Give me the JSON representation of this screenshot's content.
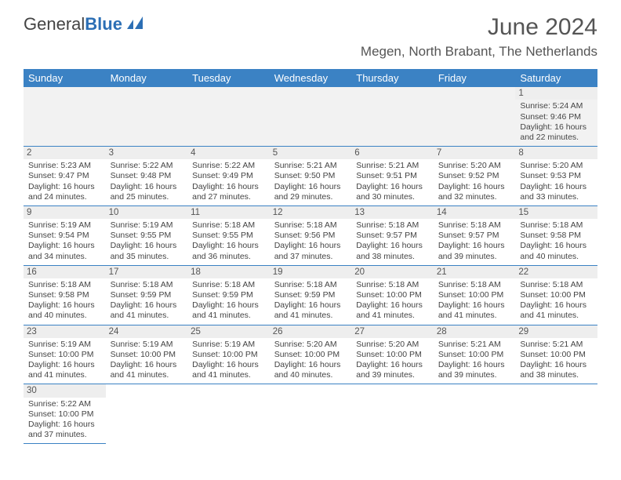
{
  "logo": {
    "part1": "General",
    "part2": "Blue"
  },
  "title": "June 2024",
  "location": "Megen, North Brabant, The Netherlands",
  "colors": {
    "header_bg": "#3b82c4",
    "header_text": "#ffffff",
    "cell_border": "#3b82c4",
    "daynum_bg": "#eeeeee",
    "text": "#444444",
    "logo_blue": "#2c6fb5"
  },
  "weekdays": [
    "Sunday",
    "Monday",
    "Tuesday",
    "Wednesday",
    "Thursday",
    "Friday",
    "Saturday"
  ],
  "weeks": [
    [
      null,
      null,
      null,
      null,
      null,
      null,
      {
        "num": "1",
        "sunrise": "5:24 AM",
        "sunset": "9:46 PM",
        "daylight": "16 hours and 22 minutes."
      }
    ],
    [
      {
        "num": "2",
        "sunrise": "5:23 AM",
        "sunset": "9:47 PM",
        "daylight": "16 hours and 24 minutes."
      },
      {
        "num": "3",
        "sunrise": "5:22 AM",
        "sunset": "9:48 PM",
        "daylight": "16 hours and 25 minutes."
      },
      {
        "num": "4",
        "sunrise": "5:22 AM",
        "sunset": "9:49 PM",
        "daylight": "16 hours and 27 minutes."
      },
      {
        "num": "5",
        "sunrise": "5:21 AM",
        "sunset": "9:50 PM",
        "daylight": "16 hours and 29 minutes."
      },
      {
        "num": "6",
        "sunrise": "5:21 AM",
        "sunset": "9:51 PM",
        "daylight": "16 hours and 30 minutes."
      },
      {
        "num": "7",
        "sunrise": "5:20 AM",
        "sunset": "9:52 PM",
        "daylight": "16 hours and 32 minutes."
      },
      {
        "num": "8",
        "sunrise": "5:20 AM",
        "sunset": "9:53 PM",
        "daylight": "16 hours and 33 minutes."
      }
    ],
    [
      {
        "num": "9",
        "sunrise": "5:19 AM",
        "sunset": "9:54 PM",
        "daylight": "16 hours and 34 minutes."
      },
      {
        "num": "10",
        "sunrise": "5:19 AM",
        "sunset": "9:55 PM",
        "daylight": "16 hours and 35 minutes."
      },
      {
        "num": "11",
        "sunrise": "5:18 AM",
        "sunset": "9:55 PM",
        "daylight": "16 hours and 36 minutes."
      },
      {
        "num": "12",
        "sunrise": "5:18 AM",
        "sunset": "9:56 PM",
        "daylight": "16 hours and 37 minutes."
      },
      {
        "num": "13",
        "sunrise": "5:18 AM",
        "sunset": "9:57 PM",
        "daylight": "16 hours and 38 minutes."
      },
      {
        "num": "14",
        "sunrise": "5:18 AM",
        "sunset": "9:57 PM",
        "daylight": "16 hours and 39 minutes."
      },
      {
        "num": "15",
        "sunrise": "5:18 AM",
        "sunset": "9:58 PM",
        "daylight": "16 hours and 40 minutes."
      }
    ],
    [
      {
        "num": "16",
        "sunrise": "5:18 AM",
        "sunset": "9:58 PM",
        "daylight": "16 hours and 40 minutes."
      },
      {
        "num": "17",
        "sunrise": "5:18 AM",
        "sunset": "9:59 PM",
        "daylight": "16 hours and 41 minutes."
      },
      {
        "num": "18",
        "sunrise": "5:18 AM",
        "sunset": "9:59 PM",
        "daylight": "16 hours and 41 minutes."
      },
      {
        "num": "19",
        "sunrise": "5:18 AM",
        "sunset": "9:59 PM",
        "daylight": "16 hours and 41 minutes."
      },
      {
        "num": "20",
        "sunrise": "5:18 AM",
        "sunset": "10:00 PM",
        "daylight": "16 hours and 41 minutes."
      },
      {
        "num": "21",
        "sunrise": "5:18 AM",
        "sunset": "10:00 PM",
        "daylight": "16 hours and 41 minutes."
      },
      {
        "num": "22",
        "sunrise": "5:18 AM",
        "sunset": "10:00 PM",
        "daylight": "16 hours and 41 minutes."
      }
    ],
    [
      {
        "num": "23",
        "sunrise": "5:19 AM",
        "sunset": "10:00 PM",
        "daylight": "16 hours and 41 minutes."
      },
      {
        "num": "24",
        "sunrise": "5:19 AM",
        "sunset": "10:00 PM",
        "daylight": "16 hours and 41 minutes."
      },
      {
        "num": "25",
        "sunrise": "5:19 AM",
        "sunset": "10:00 PM",
        "daylight": "16 hours and 41 minutes."
      },
      {
        "num": "26",
        "sunrise": "5:20 AM",
        "sunset": "10:00 PM",
        "daylight": "16 hours and 40 minutes."
      },
      {
        "num": "27",
        "sunrise": "5:20 AM",
        "sunset": "10:00 PM",
        "daylight": "16 hours and 39 minutes."
      },
      {
        "num": "28",
        "sunrise": "5:21 AM",
        "sunset": "10:00 PM",
        "daylight": "16 hours and 39 minutes."
      },
      {
        "num": "29",
        "sunrise": "5:21 AM",
        "sunset": "10:00 PM",
        "daylight": "16 hours and 38 minutes."
      }
    ],
    [
      {
        "num": "30",
        "sunrise": "5:22 AM",
        "sunset": "10:00 PM",
        "daylight": "16 hours and 37 minutes."
      },
      null,
      null,
      null,
      null,
      null,
      null
    ]
  ],
  "labels": {
    "sunrise": "Sunrise:",
    "sunset": "Sunset:",
    "daylight": "Daylight:"
  }
}
